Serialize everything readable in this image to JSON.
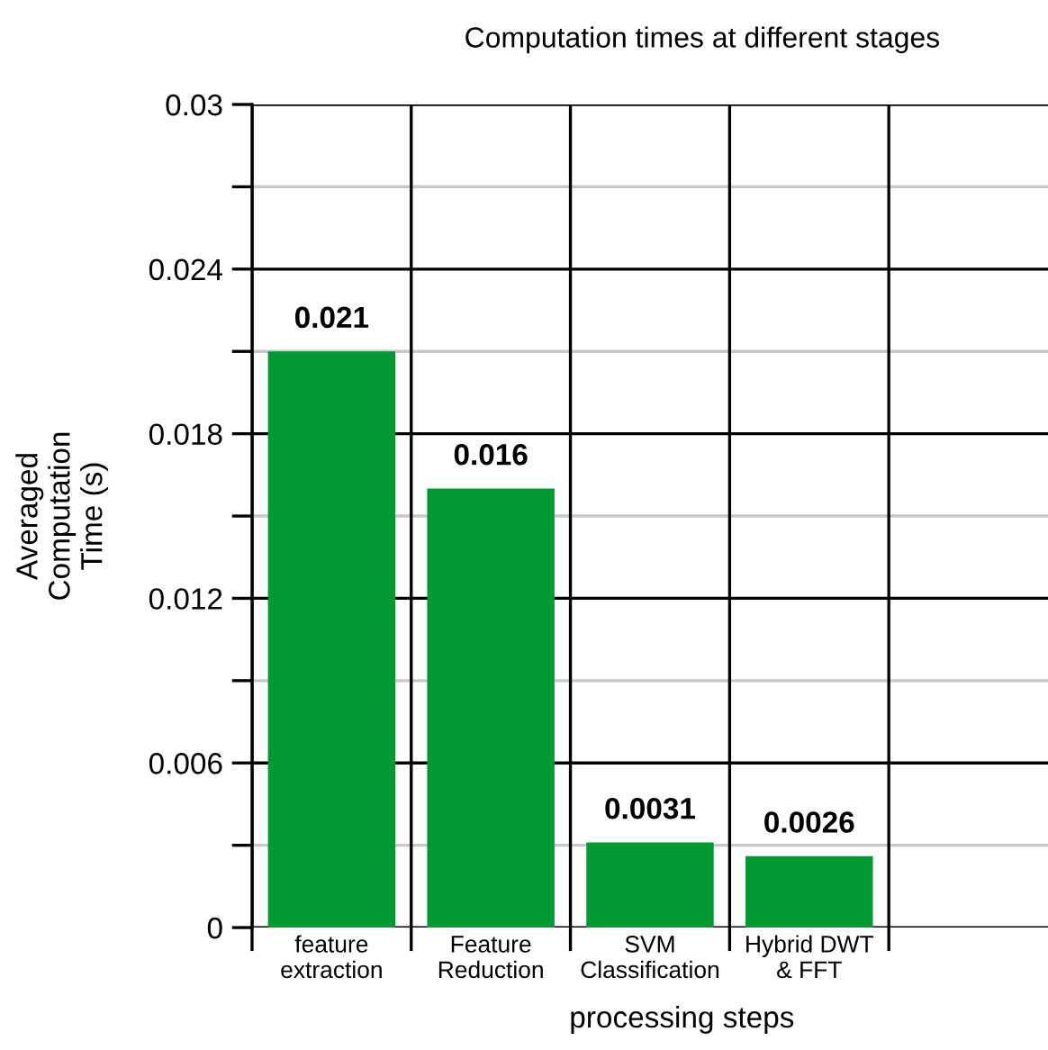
{
  "chart_data": {
    "type": "bar",
    "title": "Computation times at different stages",
    "xlabel": "processing steps",
    "ylabel": "Averaged\nComputation\nTime (s)",
    "categories": [
      "feature\nextraction",
      "Feature\nReduction",
      "SVM\nClassification",
      "Hybrid DWT\n& FFT",
      null
    ],
    "values": [
      0.021,
      0.016,
      0.0031,
      0.0026,
      null
    ],
    "color": "#009933",
    "data_labels": true,
    "ylim": [
      0,
      0.03
    ],
    "yticks": [
      0,
      {
        "value": 0.003,
        "label": null
      },
      0.006,
      {
        "value": 0.009,
        "label": null
      },
      0.012,
      {
        "value": 0.015,
        "label": null
      },
      0.018,
      {
        "value": 0.021,
        "label": null
      },
      0.024,
      {
        "value": 0.027,
        "label": null
      },
      0.03
    ],
    "grid": true
  }
}
